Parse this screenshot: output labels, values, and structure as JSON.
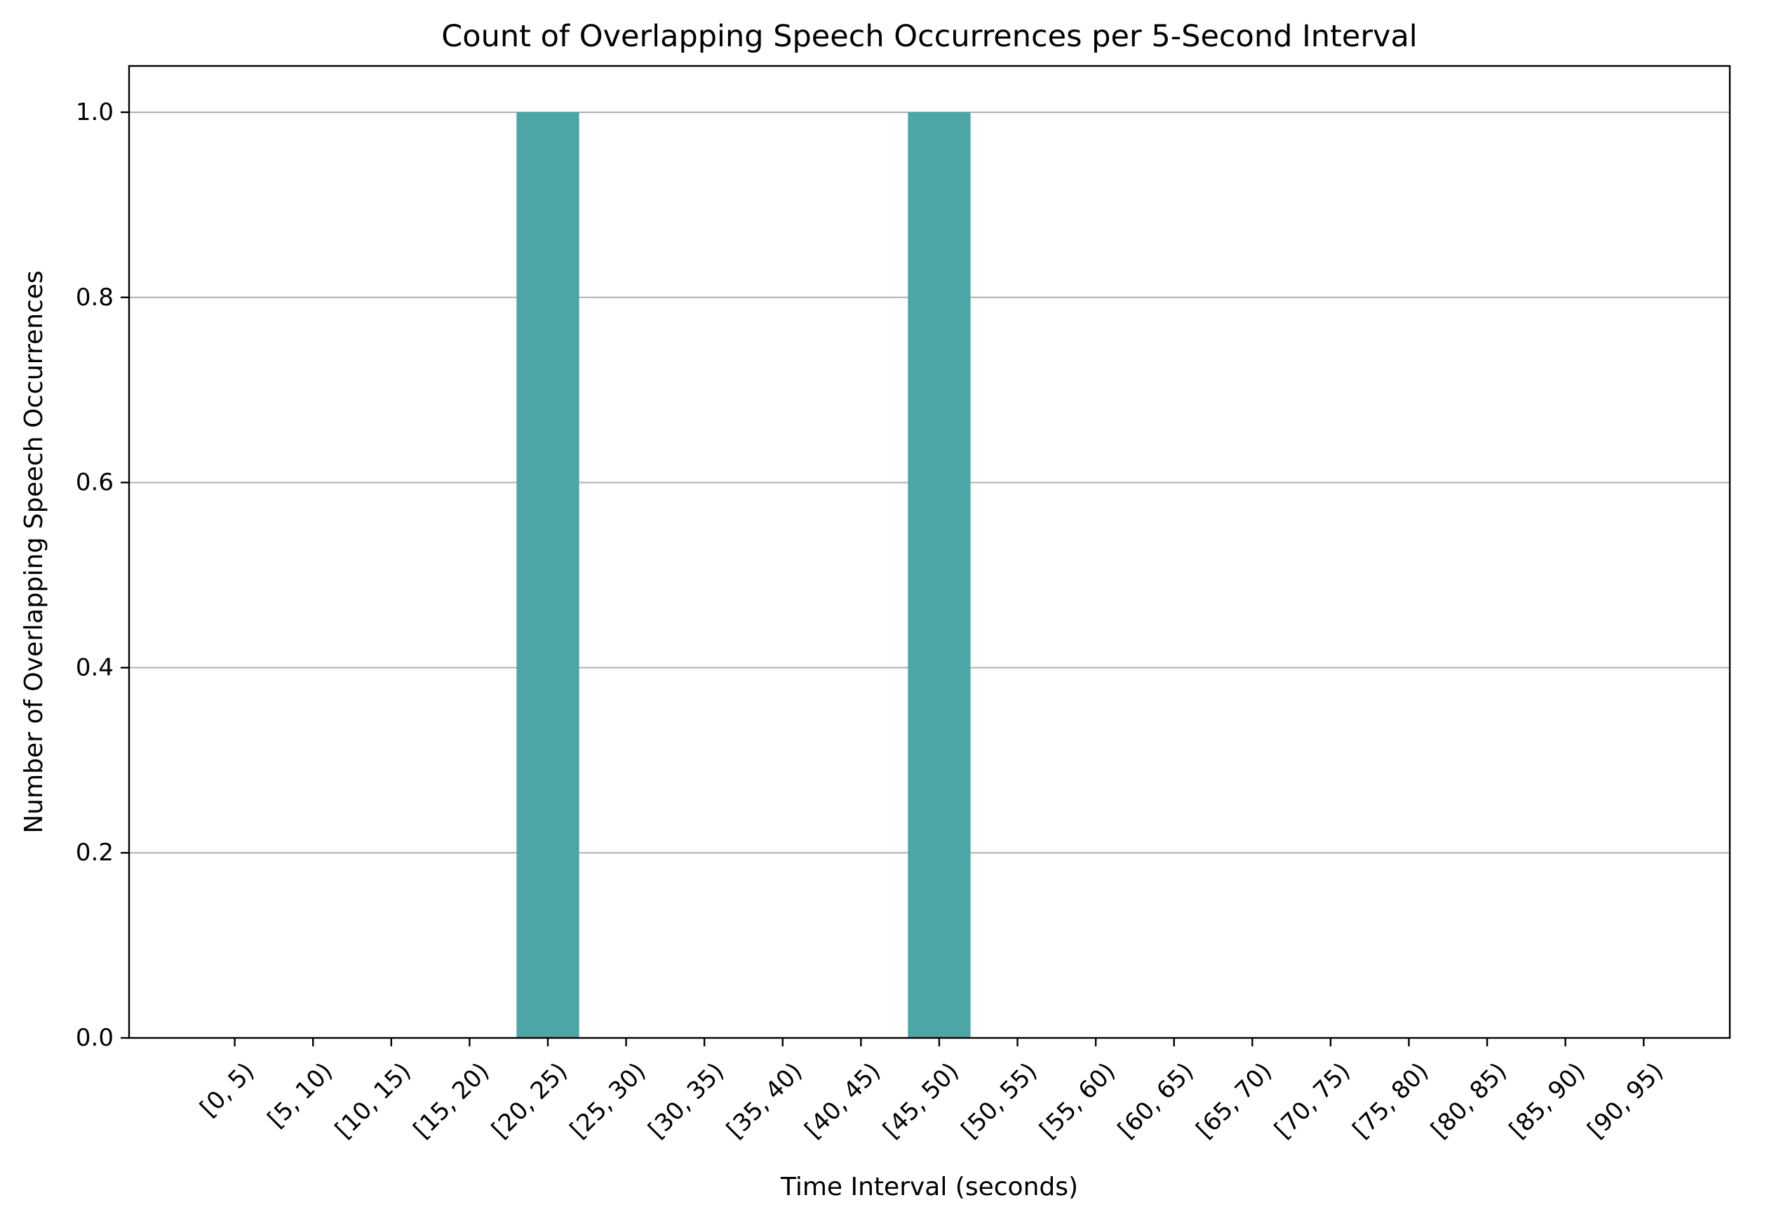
{
  "chart_data": {
    "type": "bar",
    "title": "Count of Overlapping Speech Occurrences per 5-Second Interval",
    "xlabel": "Time Interval (seconds)",
    "ylabel": "Number of Overlapping Speech Occurrences",
    "categories": [
      "[0, 5)",
      "[5, 10)",
      "[10, 15)",
      "[15, 20)",
      "[20, 25)",
      "[25, 30)",
      "[30, 35)",
      "[35, 40)",
      "[40, 45)",
      "[45, 50)",
      "[50, 55)",
      "[55, 60)",
      "[60, 65)",
      "[65, 70)",
      "[70, 75)",
      "[75, 80)",
      "[80, 85)",
      "[85, 90)",
      "[90, 95)"
    ],
    "values": [
      0,
      0,
      0,
      0,
      1,
      0,
      0,
      0,
      0,
      1,
      0,
      0,
      0,
      0,
      0,
      0,
      0,
      0,
      0
    ],
    "ylim": [
      0,
      1.05
    ],
    "yticks": [
      "0.0",
      "0.2",
      "0.4",
      "0.6",
      "0.8",
      "1.0"
    ],
    "xlim": [
      -1.35,
      19.1
    ],
    "grid": "y-major",
    "bar_color": "#4ca6a6",
    "grid_color": "#b0b0b0",
    "axis_color": "#000000"
  }
}
